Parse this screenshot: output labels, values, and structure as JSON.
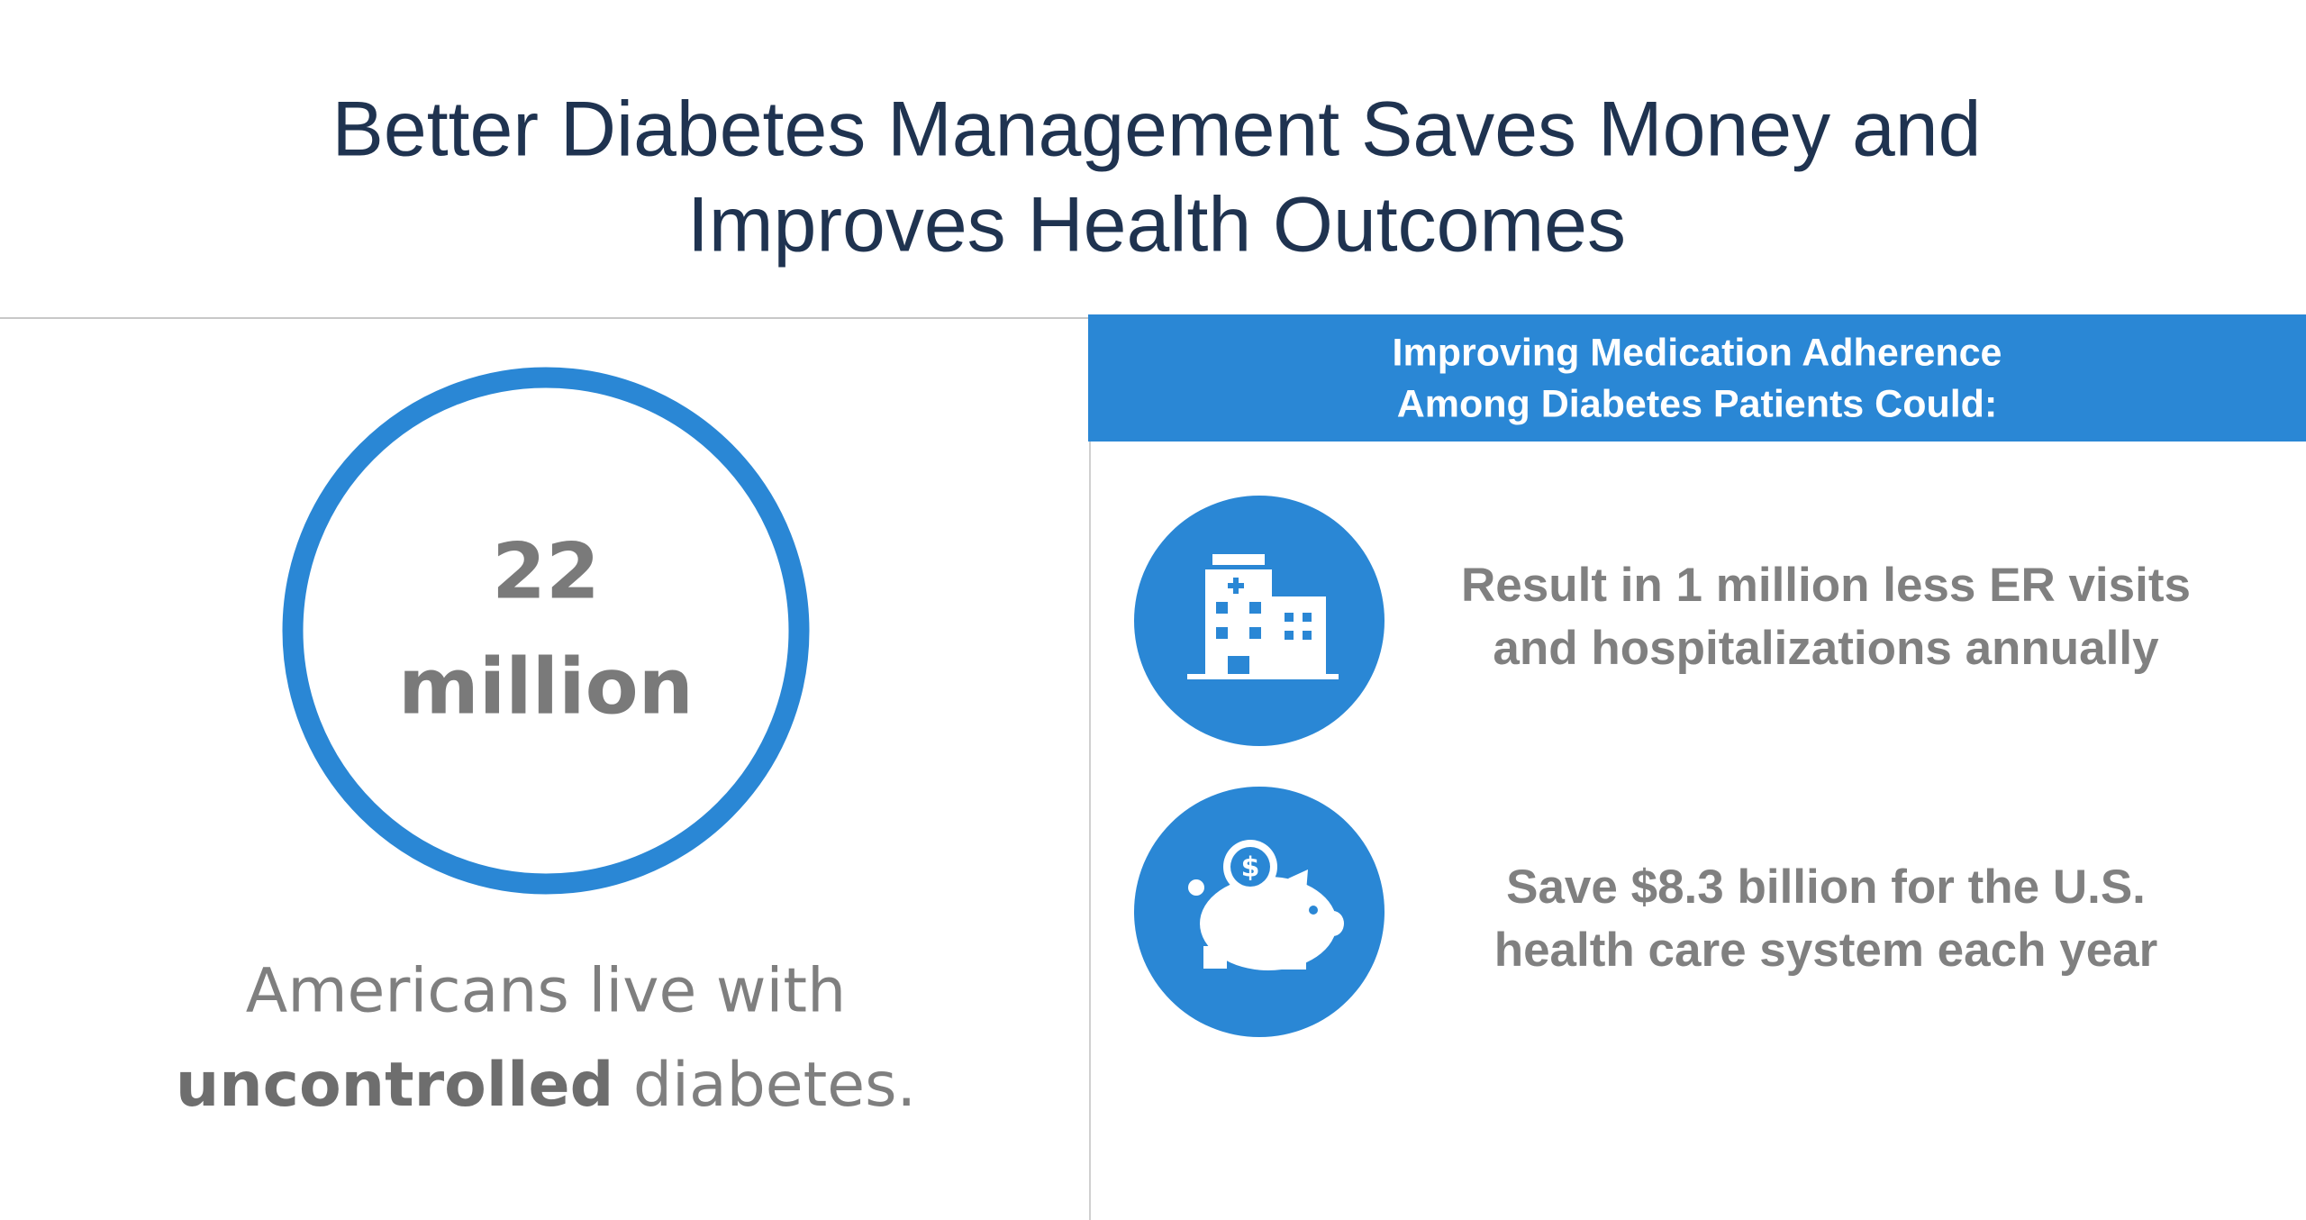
{
  "header": {
    "title_lines": [
      "Better Diabetes Management Saves Money and",
      "Improves Health Outcomes"
    ]
  },
  "stat": {
    "number_lines": [
      "22",
      "million"
    ],
    "text_line_1": "Americans live with",
    "text_bold": "uncontrolled",
    "text_rest": " diabetes."
  },
  "panel": {
    "heading_lines": [
      "Improving Medication Adherence",
      "Among Diabetes Patients Could:"
    ],
    "items": [
      {
        "lines": [
          "Result in 1 million less ER visits",
          "and hospitalizations annually"
        ]
      },
      {
        "lines": [
          "Save $8.3 billion for the U.S.",
          "health care system each year"
        ]
      }
    ]
  }
}
